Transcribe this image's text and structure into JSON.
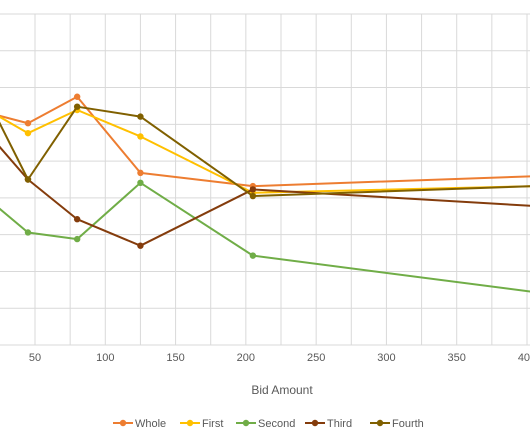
{
  "chart_data": {
    "type": "line",
    "xlabel": "Bid Amount",
    "ylabel": "",
    "x_ticks": [
      "50",
      "100",
      "150",
      "200",
      "250",
      "300",
      "350",
      "400"
    ],
    "xlim": [
      22,
      405
    ],
    "ylim": [
      0,
      100
    ],
    "grid": true,
    "legend_position": "bottom",
    "series": [
      {
        "name": "Whole",
        "color": "#ED7D31",
        "x": [
          0,
          45,
          80,
          125,
          205,
          405
        ],
        "y": [
          72,
          67,
          75,
          52,
          48,
          51
        ]
      },
      {
        "name": "First",
        "color": "#FFC000",
        "x": [
          0,
          45,
          80,
          125,
          205,
          405
        ],
        "y": [
          75,
          64,
          71,
          63,
          46,
          48
        ]
      },
      {
        "name": "Second",
        "color": "#70AD47",
        "x": [
          0,
          45,
          80,
          125,
          205,
          405
        ],
        "y": [
          50,
          34,
          32,
          49,
          27,
          16
        ]
      },
      {
        "name": "Third",
        "color": "#843C0C",
        "x": [
          0,
          45,
          80,
          125,
          205,
          405
        ],
        "y": [
          72,
          50,
          38,
          30,
          47,
          42
        ]
      },
      {
        "name": "Fourth",
        "color": "#806000",
        "x": [
          0,
          45,
          80,
          125,
          205,
          405
        ],
        "y": [
          88,
          50,
          72,
          69,
          45,
          48
        ]
      }
    ]
  }
}
